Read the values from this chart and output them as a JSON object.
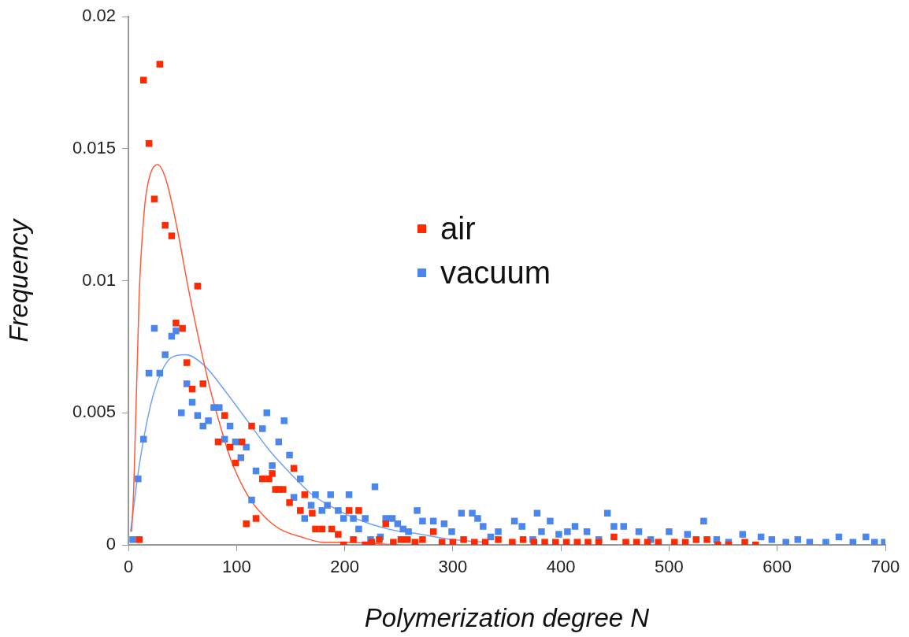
{
  "chart_data": {
    "type": "scatter",
    "xlabel": "Polymerization degree N",
    "ylabel": "Frequency",
    "xlim": [
      0,
      700
    ],
    "xticks": [
      0,
      100,
      200,
      300,
      400,
      500,
      600,
      700
    ],
    "ylim": [
      0,
      0.02
    ],
    "yticks": [
      0,
      0.005,
      0.01,
      0.015,
      0.02
    ],
    "grid": false,
    "legend": "center",
    "marker": "square",
    "series": [
      {
        "name": "air",
        "type": "scatter",
        "color": "#ff2a00",
        "x": [
          10,
          14,
          19,
          24,
          29,
          34,
          40,
          44,
          50,
          54,
          59,
          64,
          69,
          83,
          89,
          94,
          99,
          105,
          109,
          114,
          118,
          124,
          130,
          133,
          136,
          139,
          143,
          149,
          153,
          159,
          163,
          170,
          173,
          179,
          188,
          194,
          199,
          204,
          208,
          213,
          219,
          225,
          232,
          238,
          245,
          252,
          258,
          265,
          272,
          282,
          290,
          300,
          310,
          320,
          330,
          342,
          355,
          365,
          375,
          385,
          395,
          405,
          415,
          425,
          435,
          449,
          460,
          470,
          480,
          490,
          505,
          515,
          525,
          535,
          545,
          555,
          570,
          580
        ],
        "values": [
          0.0002,
          0.0176,
          0.0152,
          0.0131,
          0.0182,
          0.0121,
          0.0117,
          0.0084,
          0.0082,
          0.0069,
          0.0059,
          0.0098,
          0.0061,
          0.0039,
          0.0049,
          0.0037,
          0.0031,
          0.0039,
          0.0008,
          0.0045,
          0.001,
          0.0025,
          0.0025,
          0.0027,
          0.0021,
          0.0021,
          0.0021,
          0.0016,
          0.0029,
          0.0013,
          0.0019,
          0.0012,
          0.0006,
          0.0006,
          0.0006,
          0.0004,
          0,
          0.0013,
          0.0002,
          0.0013,
          0,
          0.0001,
          0.0002,
          0.0008,
          0.0001,
          0.0002,
          0.0002,
          0.0001,
          0.0002,
          0.0005,
          0.0001,
          0.0001,
          0.0002,
          0.0001,
          0.0001,
          0.0002,
          0.0001,
          0.0002,
          0.0001,
          0.0001,
          0.0001,
          0.0001,
          0.0001,
          0.0001,
          0.0001,
          0.0003,
          0.0001,
          0.0001,
          0.0001,
          0.0001,
          0.0001,
          0.0001,
          0.0002,
          0.0002,
          0,
          0,
          0.0001,
          0
        ]
      },
      {
        "name": "vacuum",
        "type": "scatter",
        "color": "#4a86ee",
        "x": [
          4,
          9,
          14,
          19,
          24,
          29,
          34,
          40,
          44,
          49,
          54,
          59,
          64,
          69,
          74,
          79,
          84,
          89,
          94,
          99,
          104,
          109,
          114,
          118,
          124,
          128,
          133,
          139,
          144,
          149,
          153,
          159,
          163,
          169,
          173,
          179,
          184,
          187,
          194,
          199,
          204,
          208,
          213,
          219,
          224,
          228,
          233,
          238,
          244,
          249,
          254,
          259,
          267,
          272,
          282,
          292,
          299,
          308,
          318,
          323,
          328,
          335,
          342,
          357,
          364,
          374,
          378,
          382,
          390,
          398,
          406,
          413,
          424,
          435,
          443,
          449,
          458,
          472,
          483,
          500,
          517,
          532,
          544,
          555,
          568,
          585,
          595,
          608,
          619,
          630,
          645,
          657,
          670,
          682,
          690,
          699
        ],
        "values": [
          0.0002,
          0.0025,
          0.004,
          0.0065,
          0.0082,
          0.0065,
          0.0072,
          0.0079,
          0.0081,
          0.005,
          0.0061,
          0.0054,
          0.0049,
          0.0045,
          0.0047,
          0.0052,
          0.0052,
          0.004,
          0.0045,
          0.0039,
          0.0033,
          0.0037,
          0.0017,
          0.0028,
          0.0044,
          0.005,
          0.003,
          0.0039,
          0.0047,
          0.0034,
          0.0018,
          0.0025,
          0.001,
          0.0015,
          0.0019,
          0.0013,
          0.0015,
          0.0019,
          0.0013,
          0.001,
          0.0019,
          0.001,
          0.0006,
          0.001,
          0.0002,
          0.0022,
          0.0003,
          0.001,
          0.001,
          0.0008,
          0.0006,
          0.0005,
          0.0013,
          0.0009,
          0.0009,
          0.0008,
          0.0005,
          0.0012,
          0.0012,
          0.001,
          0.0007,
          0.0003,
          0.0005,
          0.0009,
          0.0007,
          0.0002,
          0.0012,
          0.0005,
          0.0009,
          0.0004,
          0.0005,
          0.0007,
          0.0005,
          0.0002,
          0.0012,
          0.0007,
          0.0007,
          0.0005,
          0.0002,
          0.0005,
          0.0004,
          0.0009,
          0.0002,
          0.0001,
          0.0004,
          0.0003,
          0.0002,
          0.0001,
          0.0002,
          0.0001,
          0.0001,
          0.0003,
          0.0001,
          0.0003,
          0.0001,
          0.0001
        ]
      },
      {
        "type": "line",
        "marker": "none",
        "color": "#ff5a3c",
        "x": [
          3,
          5,
          10,
          15,
          20,
          27,
          35,
          45,
          55,
          65,
          75,
          85,
          95,
          110,
          125,
          140,
          160,
          180,
          200,
          250
        ],
        "values": [
          0.0005,
          0.0022,
          0.0095,
          0.0128,
          0.014,
          0.0144,
          0.0138,
          0.012,
          0.0098,
          0.0078,
          0.006,
          0.0045,
          0.0032,
          0.0019,
          0.0011,
          0.0006,
          0.0003,
          0.0001,
          0.0001,
          0
        ]
      },
      {
        "type": "line",
        "marker": "none",
        "color": "#6fa3f5",
        "x": [
          2,
          10,
          20,
          30,
          40,
          53,
          70,
          90,
          110,
          130,
          150,
          170,
          190,
          210,
          240,
          270,
          300,
          330
        ],
        "values": [
          0.0005,
          0.003,
          0.0052,
          0.0065,
          0.0071,
          0.0072,
          0.0068,
          0.0058,
          0.0047,
          0.0036,
          0.0027,
          0.0019,
          0.0014,
          0.001,
          0.0006,
          0.0004,
          0.0002,
          0.0001
        ]
      }
    ]
  }
}
